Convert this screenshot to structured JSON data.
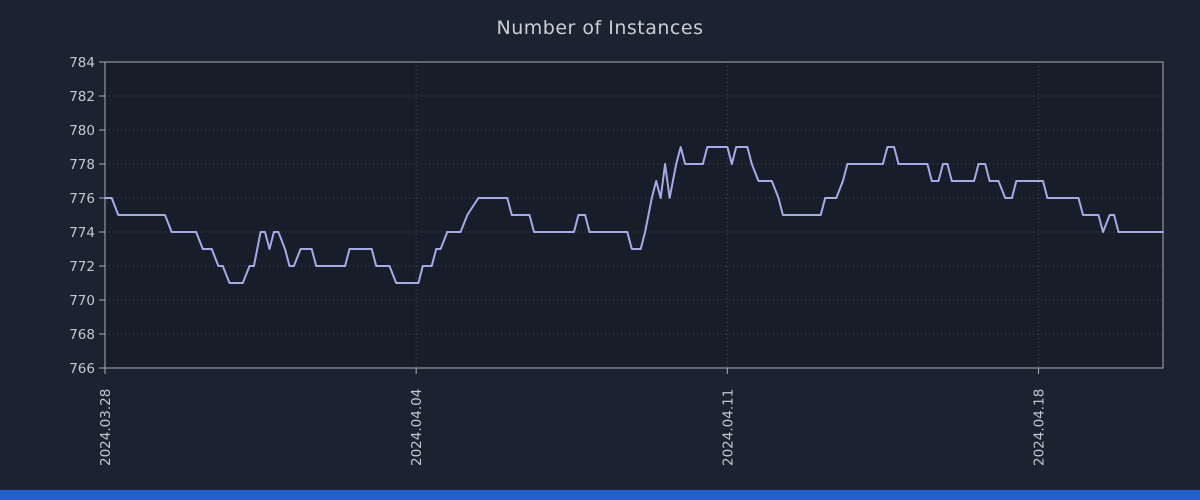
{
  "title": "Number of Instances",
  "colors": {
    "page_bg": "#1c2330",
    "plot_bg": "#171d29",
    "line": "#a6abe8",
    "frame": "#a8adb6",
    "grid": "rgba(200,210,225,0.28)",
    "text": "#c3c9d4",
    "title_text": "#c9ced8",
    "bottom_bar": "#2161cf"
  },
  "chart_data": {
    "type": "line",
    "title": "Number of Instances",
    "xlabel": "",
    "ylabel": "",
    "x_unit": "days since first tick (2024.03.28)",
    "xlim": [
      0,
      23.8
    ],
    "ylim": [
      766,
      784
    ],
    "y_ticks": [
      766,
      768,
      770,
      772,
      774,
      776,
      778,
      780,
      782,
      784
    ],
    "x_ticks": [
      {
        "day": 0,
        "label": "2024.03.28"
      },
      {
        "day": 7,
        "label": "2024.04.04"
      },
      {
        "day": 14,
        "label": "2024.04.11"
      },
      {
        "day": 21,
        "label": "2024.04.18"
      }
    ],
    "grid": true,
    "legend": "none",
    "series": [
      {
        "name": "instances",
        "points": [
          [
            0,
            776
          ],
          [
            0.15,
            776
          ],
          [
            0.3,
            775
          ],
          [
            1.35,
            775
          ],
          [
            1.5,
            774
          ],
          [
            2.05,
            774
          ],
          [
            2.2,
            773
          ],
          [
            2.4,
            773
          ],
          [
            2.55,
            772
          ],
          [
            2.65,
            772
          ],
          [
            2.8,
            771
          ],
          [
            3.1,
            771
          ],
          [
            3.25,
            772
          ],
          [
            3.35,
            772
          ],
          [
            3.5,
            774
          ],
          [
            3.6,
            774
          ],
          [
            3.7,
            773
          ],
          [
            3.8,
            774
          ],
          [
            3.9,
            774
          ],
          [
            4.05,
            773
          ],
          [
            4.15,
            772
          ],
          [
            4.25,
            772
          ],
          [
            4.4,
            773
          ],
          [
            4.65,
            773
          ],
          [
            4.75,
            772
          ],
          [
            5.4,
            772
          ],
          [
            5.5,
            773
          ],
          [
            6.0,
            773
          ],
          [
            6.1,
            772
          ],
          [
            6.4,
            772
          ],
          [
            6.55,
            771
          ],
          [
            7.05,
            771
          ],
          [
            7.15,
            772
          ],
          [
            7.35,
            772
          ],
          [
            7.45,
            773
          ],
          [
            7.55,
            773
          ],
          [
            7.7,
            774
          ],
          [
            8.0,
            774
          ],
          [
            8.15,
            775
          ],
          [
            8.4,
            776
          ],
          [
            9.05,
            776
          ],
          [
            9.15,
            775
          ],
          [
            9.55,
            775
          ],
          [
            9.65,
            774
          ],
          [
            10.55,
            774
          ],
          [
            10.65,
            775
          ],
          [
            10.8,
            775
          ],
          [
            10.9,
            774
          ],
          [
            11.75,
            774
          ],
          [
            11.85,
            773
          ],
          [
            12.05,
            773
          ],
          [
            12.15,
            774
          ],
          [
            12.3,
            776
          ],
          [
            12.4,
            777
          ],
          [
            12.5,
            776
          ],
          [
            12.6,
            778
          ],
          [
            12.7,
            776
          ],
          [
            12.85,
            778
          ],
          [
            12.95,
            779
          ],
          [
            13.05,
            778
          ],
          [
            13.45,
            778
          ],
          [
            13.55,
            779
          ],
          [
            14.0,
            779
          ],
          [
            14.1,
            778
          ],
          [
            14.2,
            779
          ],
          [
            14.45,
            779
          ],
          [
            14.55,
            778
          ],
          [
            14.7,
            777
          ],
          [
            15.0,
            777
          ],
          [
            15.15,
            776
          ],
          [
            15.25,
            775
          ],
          [
            16.1,
            775
          ],
          [
            16.2,
            776
          ],
          [
            16.45,
            776
          ],
          [
            16.6,
            777
          ],
          [
            16.7,
            778
          ],
          [
            17.5,
            778
          ],
          [
            17.6,
            779
          ],
          [
            17.75,
            779
          ],
          [
            17.85,
            778
          ],
          [
            18.5,
            778
          ],
          [
            18.6,
            777
          ],
          [
            18.75,
            777
          ],
          [
            18.85,
            778
          ],
          [
            18.95,
            778
          ],
          [
            19.05,
            777
          ],
          [
            19.55,
            777
          ],
          [
            19.65,
            778
          ],
          [
            19.8,
            778
          ],
          [
            19.9,
            777
          ],
          [
            20.1,
            777
          ],
          [
            20.25,
            776
          ],
          [
            20.4,
            776
          ],
          [
            20.5,
            777
          ],
          [
            21.1,
            777
          ],
          [
            21.2,
            776
          ],
          [
            21.9,
            776
          ],
          [
            22.0,
            775
          ],
          [
            22.35,
            775
          ],
          [
            22.45,
            774
          ],
          [
            22.6,
            775
          ],
          [
            22.7,
            775
          ],
          [
            22.8,
            774
          ],
          [
            23.8,
            774
          ]
        ]
      }
    ]
  }
}
